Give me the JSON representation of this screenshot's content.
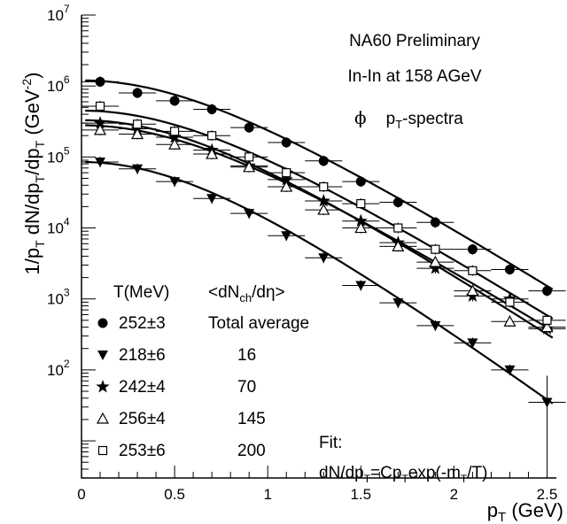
{
  "chart_data": {
    "type": "scatter",
    "title": "NA60 Preliminary",
    "subtitle": "In-In at 158 AGeV",
    "annotation": {
      "symbol": "ϕ",
      "main": "p",
      "sub": "T",
      "rest": "-spectra"
    },
    "xlabel": {
      "main": "p",
      "sub": "T",
      "rest": " (GeV)"
    },
    "ylabel": "1/pT dN/dpT/dpT (GeV-2)",
    "x_scale": "linear",
    "y_scale": "log",
    "xlim": [
      0,
      2.55
    ],
    "ylim": [
      3,
      10000000
    ],
    "x_ticks": [
      "0",
      "0.5",
      "1",
      "1.5",
      "2",
      "2.5"
    ],
    "y_tick_exponents": [
      "2",
      "3",
      "4",
      "5",
      "6",
      "7"
    ],
    "legend": {
      "position": "bottom-left",
      "header_T": "T(MeV)",
      "header_N": {
        "a": "<dN",
        "sub": "ch",
        "b": "/dη>"
      },
      "entries": [
        {
          "marker": "circle",
          "T": "252±3",
          "N": "Total average"
        },
        {
          "marker": "triangle-down",
          "T": "218±6",
          "N": "16"
        },
        {
          "marker": "star",
          "T": "242±4",
          "N": "70"
        },
        {
          "marker": "triangle-open",
          "T": "256±4",
          "N": "145"
        },
        {
          "marker": "square-open",
          "T": "253±6",
          "N": "200"
        }
      ]
    },
    "fit": {
      "label": "Fit:",
      "formula": {
        "a": "dN/dp",
        "s1": "T",
        "b": "=Cp",
        "s2": "T",
        "c": "exp(-m",
        "s3": "T",
        "d": "/T)"
      }
    },
    "series": [
      {
        "marker": "circle",
        "T_MeV": 252,
        "norm": 1200000,
        "x": [
          0.1,
          0.3,
          0.5,
          0.7,
          0.9,
          1.1,
          1.3,
          1.5,
          1.7,
          1.9,
          2.1,
          2.3,
          2.5
        ],
        "y": [
          1150000,
          800000,
          620000,
          470000,
          260000,
          160000,
          88000,
          45000,
          23000,
          12000,
          5000,
          2600,
          1300
        ]
      },
      {
        "marker": "triangle-down",
        "T_MeV": 218,
        "norm": 85000,
        "x": [
          0.1,
          0.3,
          0.5,
          0.7,
          0.9,
          1.1,
          1.3,
          1.5,
          1.7,
          1.9,
          2.1,
          2.3,
          2.5
        ],
        "y": [
          85000,
          68000,
          45000,
          26000,
          16000,
          7800,
          3800,
          1550,
          880,
          420,
          240,
          100,
          35
        ]
      },
      {
        "marker": "star",
        "T_MeV": 242,
        "norm": 330000,
        "x": [
          0.1,
          0.3,
          0.5,
          0.7,
          0.9,
          1.1,
          1.3,
          1.5,
          1.7,
          1.9,
          2.1,
          2.3,
          2.5
        ],
        "y": [
          300000,
          250000,
          190000,
          125000,
          75000,
          48000,
          24000,
          12500,
          6200,
          2700,
          1100,
          1000,
          380
        ]
      },
      {
        "marker": "triangle-open",
        "T_MeV": 256,
        "norm": 280000,
        "x": [
          0.1,
          0.3,
          0.5,
          0.7,
          0.9,
          1.1,
          1.3,
          1.5,
          1.7,
          1.9,
          2.1,
          2.3,
          2.5
        ],
        "y": [
          240000,
          210000,
          150000,
          110000,
          72000,
          38000,
          18000,
          10000,
          5500,
          3300,
          1300,
          480,
          400
        ]
      },
      {
        "marker": "square-open",
        "T_MeV": 253,
        "norm": 450000,
        "x": [
          0.1,
          0.3,
          0.5,
          0.7,
          0.9,
          1.1,
          1.3,
          1.5,
          1.7,
          1.9,
          2.1,
          2.3,
          2.5
        ],
        "y": [
          520000,
          290000,
          230000,
          200000,
          100000,
          60000,
          38000,
          22000,
          10000,
          5000,
          2500,
          900,
          500
        ]
      }
    ]
  }
}
